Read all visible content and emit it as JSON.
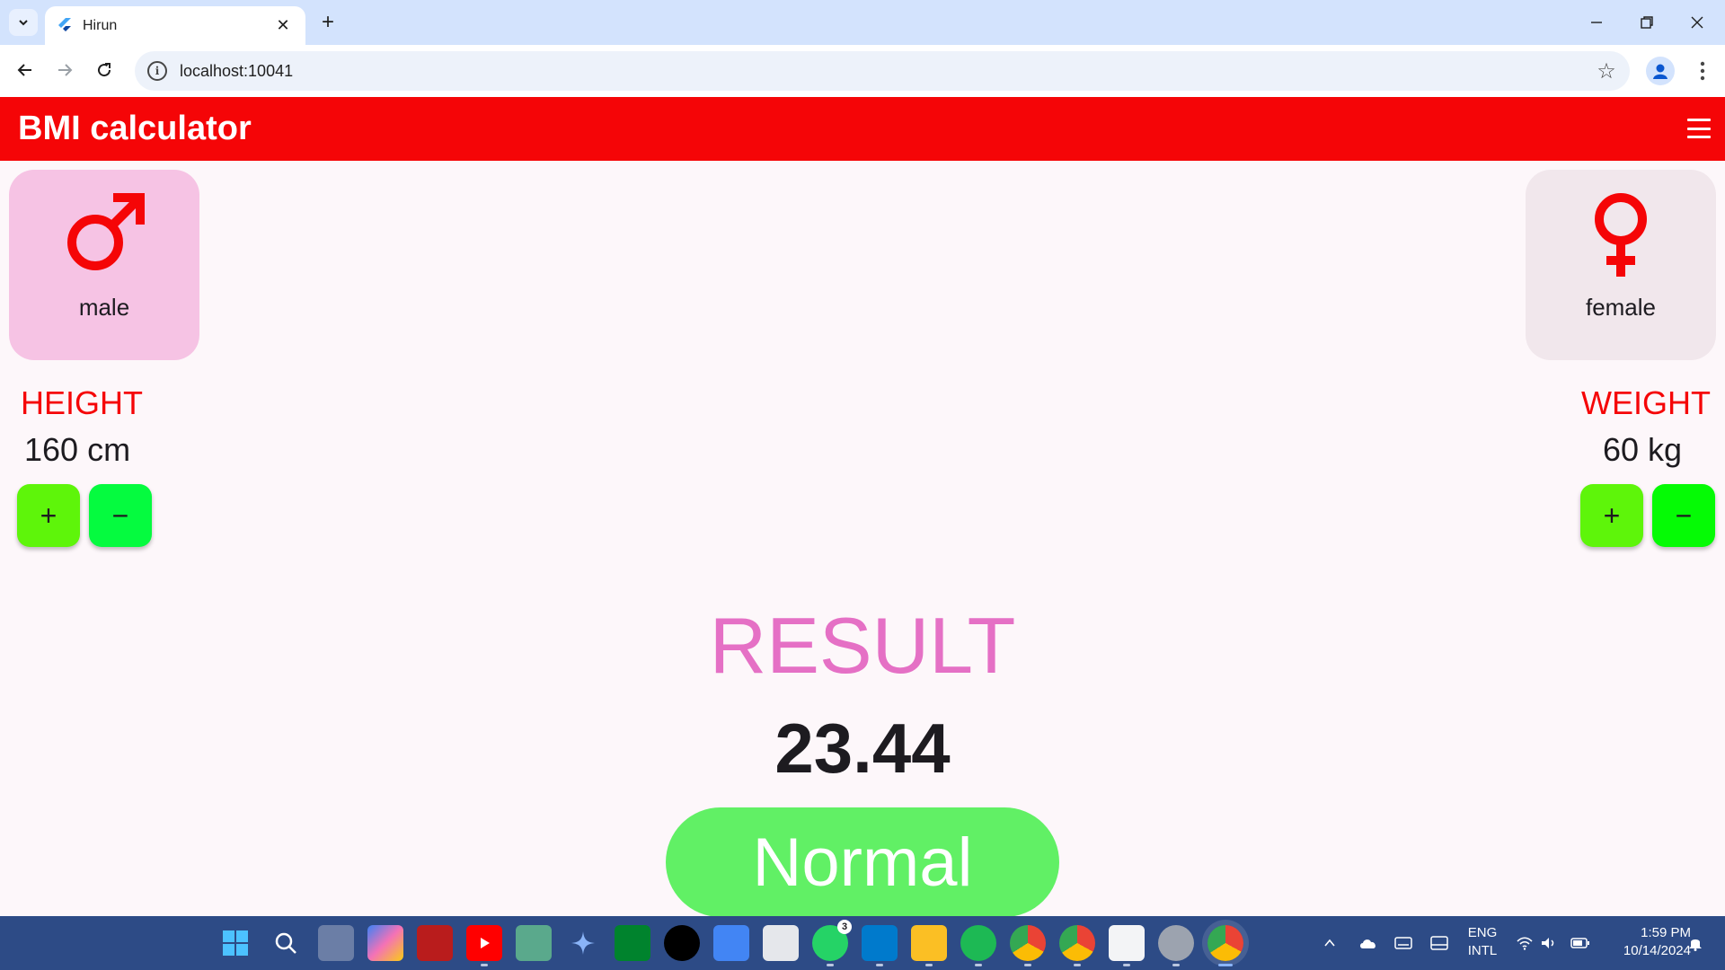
{
  "browser": {
    "tab_title": "Hirun",
    "close_glyph": "✕",
    "new_tab_glyph": "+",
    "url": "localhost:10041",
    "window_controls": [
      "minimize",
      "restore",
      "close"
    ]
  },
  "app": {
    "title": "BMI calculator",
    "accent_color": "#f50507",
    "menu_icon": "hamburger-icon"
  },
  "gender": {
    "male_label": "male",
    "female_label": "female",
    "selected": "male",
    "male_icon": "male-symbol-icon",
    "female_icon": "female-symbol-icon"
  },
  "height": {
    "label": "HEIGHT",
    "value": "160 cm",
    "plus": "+",
    "minus": "−"
  },
  "weight": {
    "label": "WEIGHT",
    "value": "60 kg",
    "plus": "+",
    "minus": "−"
  },
  "result": {
    "title": "RESULT",
    "value": "23.44",
    "status": "Normal",
    "status_color": "#61f065"
  },
  "taskbar": {
    "icons": [
      "windows-start-icon",
      "search-icon",
      "task-view-icon",
      "copilot-icon",
      "app-icon",
      "youtube-icon",
      "chatgpt-icon",
      "gemini-icon",
      "meet-icon",
      "github-icon",
      "translate-icon",
      "app-icon",
      "whatsapp-icon",
      "vscode-icon",
      "file-explorer-icon",
      "spotify-icon",
      "chrome-icon",
      "chrome-icon",
      "snipping-tool-icon",
      "settings-icon",
      "chrome-icon"
    ],
    "whatsapp_badge": "3",
    "lang_line1": "ENG",
    "lang_line2": "INTL",
    "time": "1:59 PM",
    "date": "10/14/2024"
  }
}
